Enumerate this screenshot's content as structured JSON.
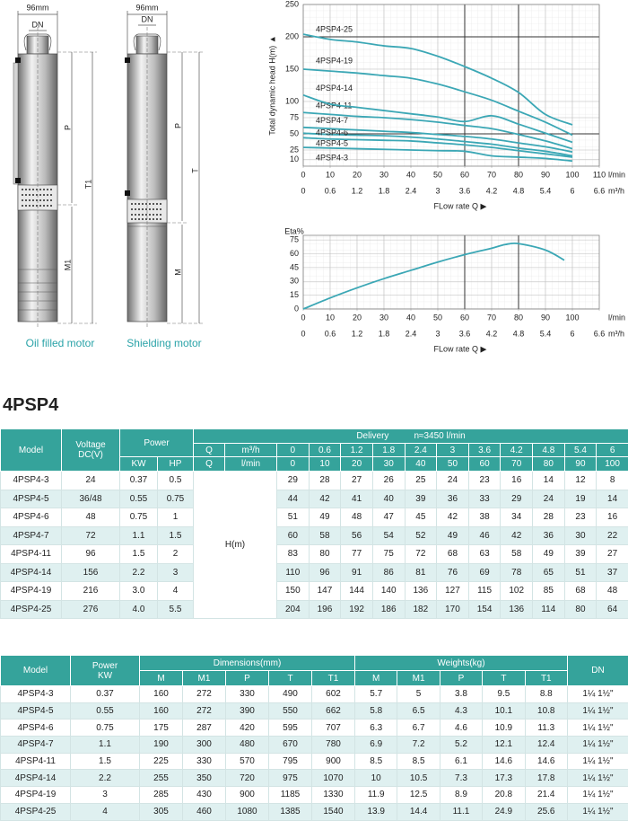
{
  "drawings": [
    {
      "width": "96mm",
      "dn": "DN",
      "dims": [
        "P",
        "T1",
        "M1"
      ],
      "caption": "Oil filled motor"
    },
    {
      "width": "96mm",
      "dn": "DN",
      "dims": [
        "P",
        "T",
        "M"
      ],
      "caption": "Shielding motor"
    }
  ],
  "chart_data": [
    {
      "type": "line",
      "ylabel": "Total dynamic head H(m) ▲",
      "xlabel": "FLow rate Q ▶",
      "xunit": "l/min",
      "x2unit": "m³/h",
      "x": [
        0,
        10,
        20,
        30,
        40,
        50,
        60,
        70,
        80,
        90,
        100
      ],
      "xlim": [
        0,
        110
      ],
      "xticks": [
        0,
        10,
        20,
        30,
        40,
        50,
        60,
        70,
        80,
        90,
        100,
        110
      ],
      "x2lim": [
        0,
        6.6
      ],
      "x2ticks": [
        0,
        0.6,
        1.2,
        1.8,
        2.4,
        3,
        3.6,
        4.2,
        4.8,
        5.4,
        6,
        6.6
      ],
      "ylim": [
        0,
        250
      ],
      "yticks": [
        10,
        25,
        50,
        75,
        100,
        150,
        200,
        250
      ],
      "grid": true,
      "major_lines": {
        "x": [
          60,
          80
        ],
        "y": [
          50,
          200
        ]
      },
      "series": [
        {
          "name": "4PSP4-3",
          "color": "#3ba7b5",
          "values": [
            29,
            28,
            27,
            26,
            25,
            24,
            23,
            16,
            14,
            12,
            8
          ]
        },
        {
          "name": "4PSP4-5",
          "color": "#3ba7b5",
          "values": [
            44,
            42,
            41,
            40,
            39,
            36,
            33,
            29,
            24,
            19,
            14
          ]
        },
        {
          "name": "4PSP4-6",
          "color": "#3ba7b5",
          "values": [
            51,
            49,
            48,
            47,
            45,
            42,
            38,
            34,
            28,
            23,
            16
          ]
        },
        {
          "name": "4PSP4-7",
          "color": "#3ba7b5",
          "values": [
            60,
            58,
            56,
            54,
            52,
            49,
            46,
            42,
            36,
            30,
            22
          ]
        },
        {
          "name": "4PSP4-11",
          "color": "#3ba7b5",
          "values": [
            83,
            80,
            77,
            75,
            72,
            68,
            63,
            58,
            49,
            39,
            27
          ]
        },
        {
          "name": "4PSP4-14",
          "color": "#3ba7b5",
          "values": [
            110,
            96,
            91,
            86,
            81,
            76,
            69,
            78,
            65,
            51,
            37
          ]
        },
        {
          "name": "4PSP4-19",
          "color": "#3ba7b5",
          "values": [
            150,
            147,
            144,
            140,
            136,
            127,
            115,
            102,
            85,
            68,
            48
          ]
        },
        {
          "name": "4PSP4-25",
          "color": "#3ba7b5",
          "values": [
            204,
            196,
            192,
            186,
            182,
            170,
            154,
            136,
            114,
            80,
            64
          ]
        }
      ]
    },
    {
      "type": "line",
      "ylabel": "Eta%",
      "xlabel": "FLow rate Q ▶",
      "xunit": "l/min",
      "x2unit": "m³/h",
      "x": [
        0,
        10,
        20,
        30,
        40,
        50,
        60,
        70,
        75,
        80,
        90,
        97
      ],
      "values": [
        0,
        12,
        23,
        33,
        42,
        51,
        59,
        66,
        70,
        71,
        64,
        53
      ],
      "color": "#3ba7b5",
      "xlim": [
        0,
        110
      ],
      "xticks": [
        0,
        10,
        20,
        30,
        40,
        50,
        60,
        70,
        80,
        90,
        100
      ],
      "x2lim": [
        0,
        6.6
      ],
      "x2ticks": [
        0,
        0.6,
        1.2,
        1.8,
        2.4,
        3,
        3.6,
        4.2,
        4.8,
        5.4,
        6,
        6.6
      ],
      "ylim": [
        0,
        80
      ],
      "yticks": [
        0,
        15,
        30,
        45,
        60,
        75
      ],
      "grid": true,
      "major_lines": {
        "x": [
          60,
          80
        ],
        "y": []
      }
    }
  ],
  "title": "4PSP4",
  "table1": {
    "headers": {
      "model": "Model",
      "voltage": "Voltage",
      "voltage_unit": "DC(V)",
      "power": "Power",
      "kw": "KW",
      "hp": "HP",
      "delivery": "Delivery",
      "speed": "n≈3450 l/min",
      "q": "Q",
      "m3h": "m³/h",
      "lmin": "l/min",
      "h": "H(m)"
    },
    "q_m3h": [
      0,
      0.6,
      1.2,
      1.8,
      2.4,
      3,
      3.6,
      4.2,
      4.8,
      5.4,
      6
    ],
    "q_lmin": [
      0,
      10,
      20,
      30,
      40,
      50,
      60,
      70,
      80,
      90,
      100
    ],
    "rows": [
      {
        "model": "4PSP4-3",
        "voltage": 24,
        "kw": 0.37,
        "hp": 0.5,
        "head": [
          29,
          28,
          27,
          26,
          25,
          24,
          23,
          16,
          14,
          12,
          8
        ]
      },
      {
        "model": "4PSP4-5",
        "voltage": "36/48",
        "kw": 0.55,
        "hp": 0.75,
        "head": [
          44,
          42,
          41,
          40,
          39,
          36,
          33,
          29,
          24,
          19,
          14
        ]
      },
      {
        "model": "4PSP4-6",
        "voltage": 48,
        "kw": 0.75,
        "hp": 1,
        "head": [
          51,
          49,
          48,
          47,
          45,
          42,
          38,
          34,
          28,
          23,
          16
        ]
      },
      {
        "model": "4PSP4-7",
        "voltage": 72,
        "kw": 1.1,
        "hp": 1.5,
        "head": [
          60,
          58,
          56,
          54,
          52,
          49,
          46,
          42,
          36,
          30,
          22
        ]
      },
      {
        "model": "4PSP4-11",
        "voltage": 96,
        "kw": 1.5,
        "hp": 2,
        "head": [
          83,
          80,
          77,
          75,
          72,
          68,
          63,
          58,
          49,
          39,
          27
        ]
      },
      {
        "model": "4PSP4-14",
        "voltage": 156,
        "kw": 2.2,
        "hp": 3,
        "head": [
          110,
          96,
          91,
          86,
          81,
          76,
          69,
          78,
          65,
          51,
          37
        ]
      },
      {
        "model": "4PSP4-19",
        "voltage": 216,
        "kw": "3.0",
        "hp": 4,
        "head": [
          150,
          147,
          144,
          140,
          136,
          127,
          115,
          102,
          85,
          68,
          48
        ]
      },
      {
        "model": "4PSP4-25",
        "voltage": 276,
        "kw": "4.0",
        "hp": 5.5,
        "head": [
          204,
          196,
          192,
          186,
          182,
          170,
          154,
          136,
          114,
          80,
          64
        ]
      }
    ]
  },
  "table2": {
    "headers": {
      "model": "Model",
      "power": "Power",
      "kw": "KW",
      "dimensions": "Dimensions(mm)",
      "weights": "Weights(kg)",
      "dn": "DN",
      "sub": [
        "M",
        "M1",
        "P",
        "T",
        "T1"
      ]
    },
    "rows": [
      {
        "model": "4PSP4-3",
        "kw": 0.37,
        "dims": [
          160,
          272,
          330,
          490,
          602
        ],
        "weights": [
          5.7,
          5,
          3.8,
          9.5,
          8.8
        ],
        "dn": "1¼ 1½\""
      },
      {
        "model": "4PSP4-5",
        "kw": 0.55,
        "dims": [
          160,
          272,
          390,
          550,
          662
        ],
        "weights": [
          5.8,
          6.5,
          4.3,
          10.1,
          10.8
        ],
        "dn": "1¼ 1½\""
      },
      {
        "model": "4PSP4-6",
        "kw": 0.75,
        "dims": [
          175,
          287,
          420,
          595,
          707
        ],
        "weights": [
          6.3,
          6.7,
          4.6,
          10.9,
          11.3
        ],
        "dn": "1¼ 1½\""
      },
      {
        "model": "4PSP4-7",
        "kw": 1.1,
        "dims": [
          190,
          300,
          480,
          670,
          780
        ],
        "weights": [
          6.9,
          7.2,
          5.2,
          12.1,
          12.4
        ],
        "dn": "1¼ 1½\""
      },
      {
        "model": "4PSP4-11",
        "kw": 1.5,
        "dims": [
          225,
          330,
          570,
          795,
          900
        ],
        "weights": [
          8.5,
          8.5,
          6.1,
          14.6,
          14.6
        ],
        "dn": "1¼ 1½\""
      },
      {
        "model": "4PSP4-14",
        "kw": 2.2,
        "dims": [
          255,
          350,
          720,
          975,
          1070
        ],
        "weights": [
          10,
          10.5,
          7.3,
          17.3,
          17.8
        ],
        "dn": "1¼ 1½\""
      },
      {
        "model": "4PSP4-19",
        "kw": 3,
        "dims": [
          285,
          430,
          900,
          1185,
          1330
        ],
        "weights": [
          11.9,
          12.5,
          8.9,
          20.8,
          21.4
        ],
        "dn": "1¼ 1½\""
      },
      {
        "model": "4PSP4-25",
        "kw": 4,
        "dims": [
          305,
          460,
          1080,
          1385,
          1540
        ],
        "weights": [
          13.9,
          14.4,
          11.1,
          24.9,
          25.6
        ],
        "dn": "1¼ 1½\""
      }
    ]
  }
}
